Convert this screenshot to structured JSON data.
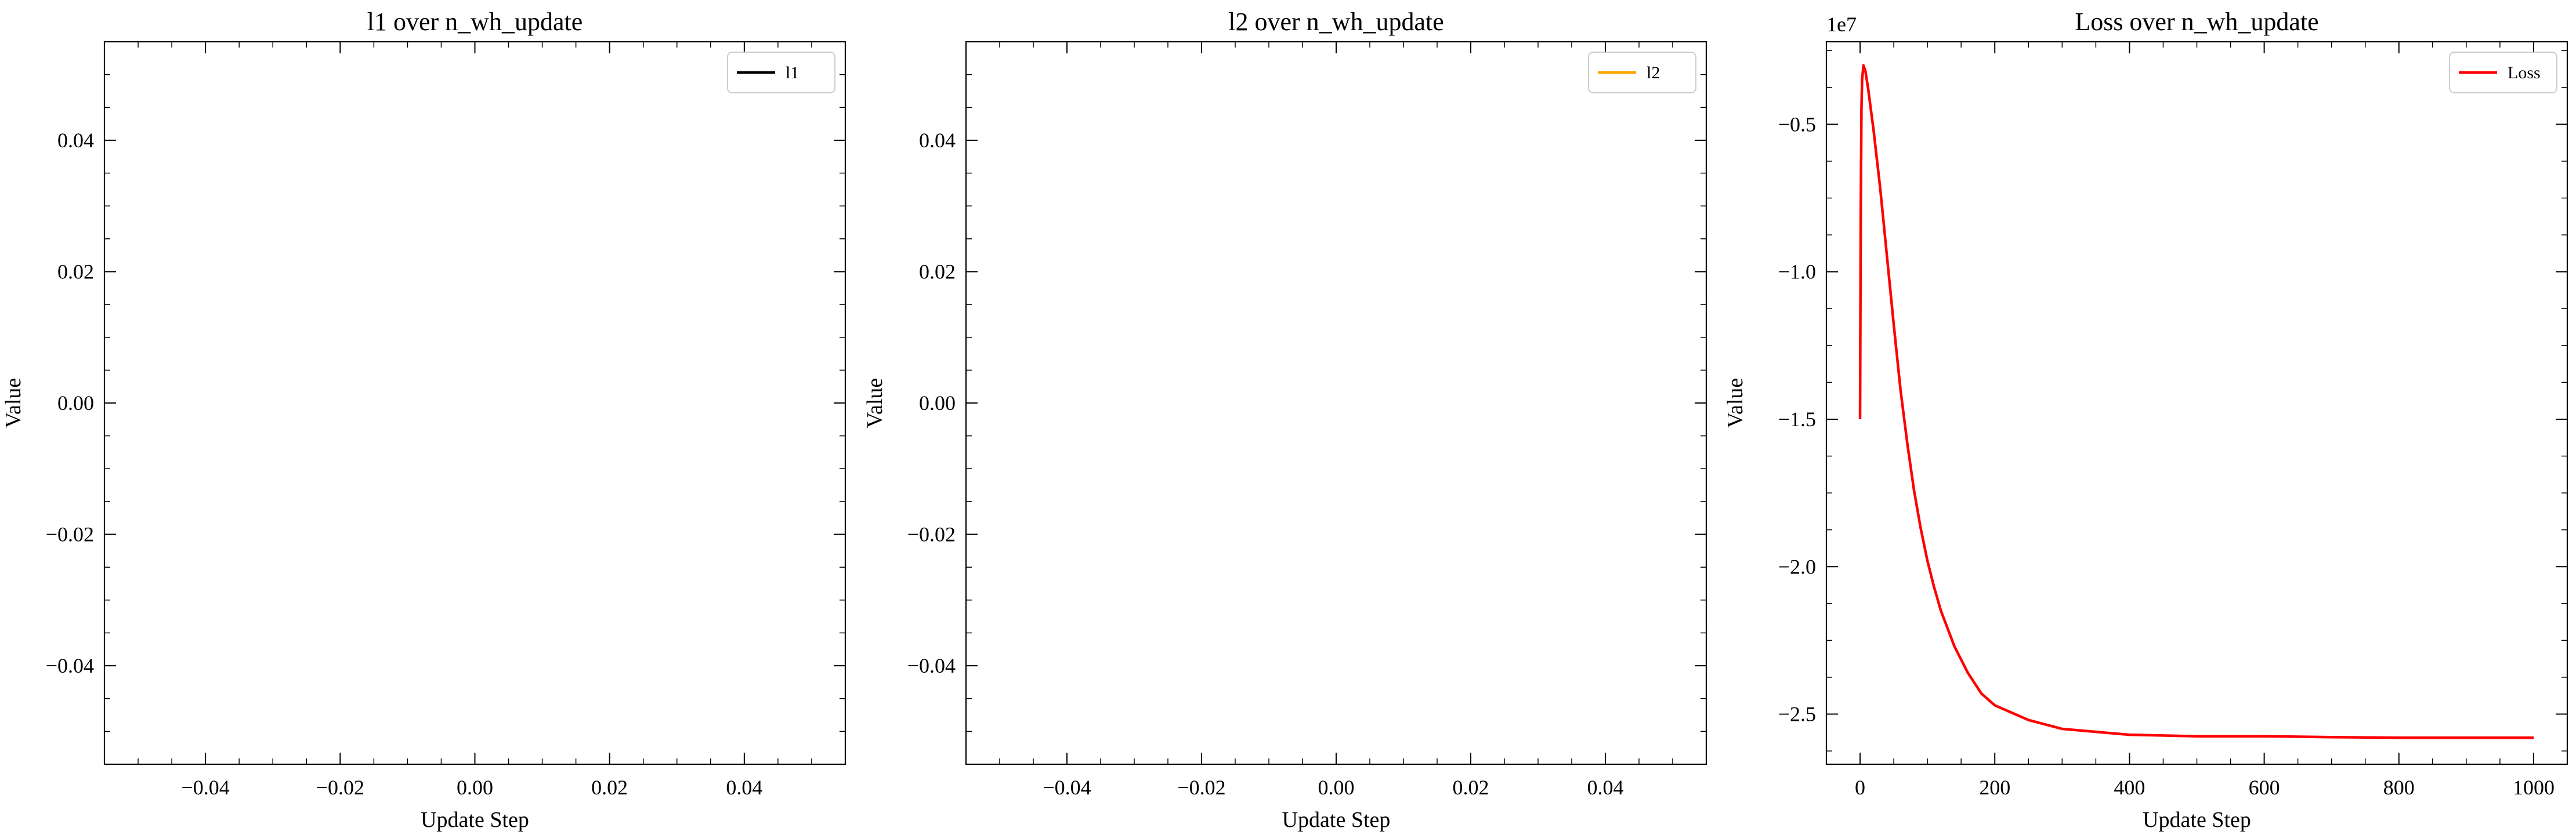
{
  "chart_data": [
    {
      "type": "line",
      "title": "l1 over n_wh_update",
      "xlabel": "Update Step",
      "ylabel": "Value",
      "xlim": [
        -0.055,
        0.055
      ],
      "ylim": [
        -0.055,
        0.055
      ],
      "xticks": [
        -0.04,
        -0.02,
        0.0,
        0.02,
        0.04
      ],
      "xtick_labels": [
        "−0.04",
        "−0.02",
        "0.00",
        "0.02",
        "0.04"
      ],
      "yticks": [
        -0.04,
        -0.02,
        0.0,
        0.02,
        0.04
      ],
      "ytick_labels": [
        "−0.04",
        "−0.02",
        "0.00",
        "0.02",
        "0.04"
      ],
      "offset_text": "",
      "legend_position": "top-right",
      "series": [
        {
          "name": "l1",
          "color": "#000000",
          "x": [],
          "y": []
        }
      ]
    },
    {
      "type": "line",
      "title": "l2 over n_wh_update",
      "xlabel": "Update Step",
      "ylabel": "Value",
      "xlim": [
        -0.055,
        0.055
      ],
      "ylim": [
        -0.055,
        0.055
      ],
      "xticks": [
        -0.04,
        -0.02,
        0.0,
        0.02,
        0.04
      ],
      "xtick_labels": [
        "−0.04",
        "−0.02",
        "0.00",
        "0.02",
        "0.04"
      ],
      "yticks": [
        -0.04,
        -0.02,
        0.0,
        0.02,
        0.04
      ],
      "ytick_labels": [
        "−0.04",
        "−0.02",
        "0.00",
        "0.02",
        "0.04"
      ],
      "offset_text": "",
      "legend_position": "top-right",
      "series": [
        {
          "name": "l2",
          "color": "#ffa500",
          "x": [],
          "y": []
        }
      ]
    },
    {
      "type": "line",
      "title": "Loss over n_wh_update",
      "xlabel": "Update Step",
      "ylabel": "Value",
      "xlim": [
        -50,
        1050
      ],
      "ylim": [
        -2.67,
        -0.22
      ],
      "xticks": [
        0,
        200,
        400,
        600,
        800,
        1000
      ],
      "xtick_labels": [
        "0",
        "200",
        "400",
        "600",
        "800",
        "1000"
      ],
      "yticks": [
        -2.5,
        -2.0,
        -1.5,
        -1.0,
        -0.5
      ],
      "ytick_labels": [
        "−2.5",
        "−2.0",
        "−1.5",
        "−1.0",
        "−0.5"
      ],
      "offset_text": "1e7",
      "legend_position": "top-right",
      "series": [
        {
          "name": "Loss",
          "color": "#ff0000",
          "x": [
            0,
            1,
            2,
            3,
            5,
            8,
            12,
            20,
            30,
            40,
            50,
            60,
            70,
            80,
            90,
            100,
            110,
            120,
            140,
            160,
            180,
            200,
            250,
            300,
            350,
            400,
            500,
            600,
            700,
            800,
            900,
            1000
          ],
          "y": [
            -1.5,
            -0.8,
            -0.45,
            -0.35,
            -0.3,
            -0.32,
            -0.38,
            -0.52,
            -0.72,
            -0.95,
            -1.18,
            -1.4,
            -1.58,
            -1.74,
            -1.87,
            -1.98,
            -2.07,
            -2.15,
            -2.27,
            -2.36,
            -2.43,
            -2.47,
            -2.52,
            -2.55,
            -2.56,
            -2.57,
            -2.575,
            -2.575,
            -2.578,
            -2.58,
            -2.58,
            -2.58
          ]
        }
      ]
    }
  ]
}
